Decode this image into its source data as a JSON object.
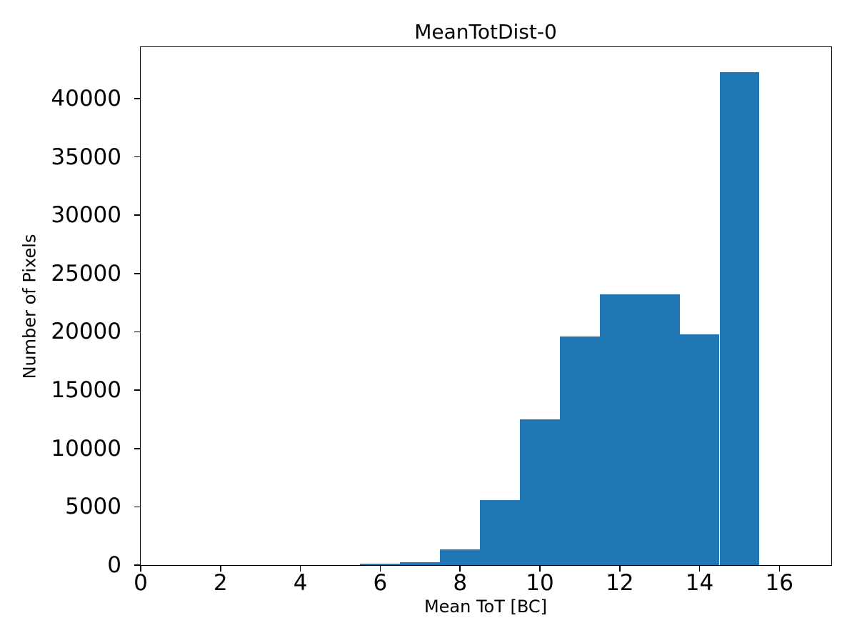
{
  "chart_data": {
    "type": "bar",
    "subtype": "histogram",
    "title": "MeanTotDist-0",
    "xlabel": "Mean ToT [BC]",
    "ylabel": "Number of Pixels",
    "bar_color": "#1f77b4",
    "axis_color": "#000000",
    "background_color": "#ffffff",
    "bin_edges": [
      5.5,
      6.5,
      7.5,
      8.5,
      9.5,
      10.5,
      11.5,
      12.5,
      13.5,
      14.5,
      15.5
    ],
    "counts": [
      120,
      250,
      1350,
      5580,
      12520,
      19570,
      23190,
      23190,
      19760,
      42270
    ],
    "xlim": [
      0,
      17.3
    ],
    "ylim": [
      0,
      44400
    ],
    "xticks": [
      0,
      2,
      4,
      6,
      8,
      10,
      12,
      14,
      16
    ],
    "xtick_labels": [
      "0",
      "2",
      "4",
      "6",
      "8",
      "10",
      "12",
      "14",
      "16"
    ],
    "yticks": [
      0,
      5000,
      10000,
      15000,
      20000,
      25000,
      30000,
      35000,
      40000
    ],
    "ytick_labels": [
      "0",
      "5000",
      "10000",
      "15000",
      "20000",
      "25000",
      "30000",
      "35000",
      "40000"
    ],
    "grid": false,
    "legend_position": "none"
  }
}
